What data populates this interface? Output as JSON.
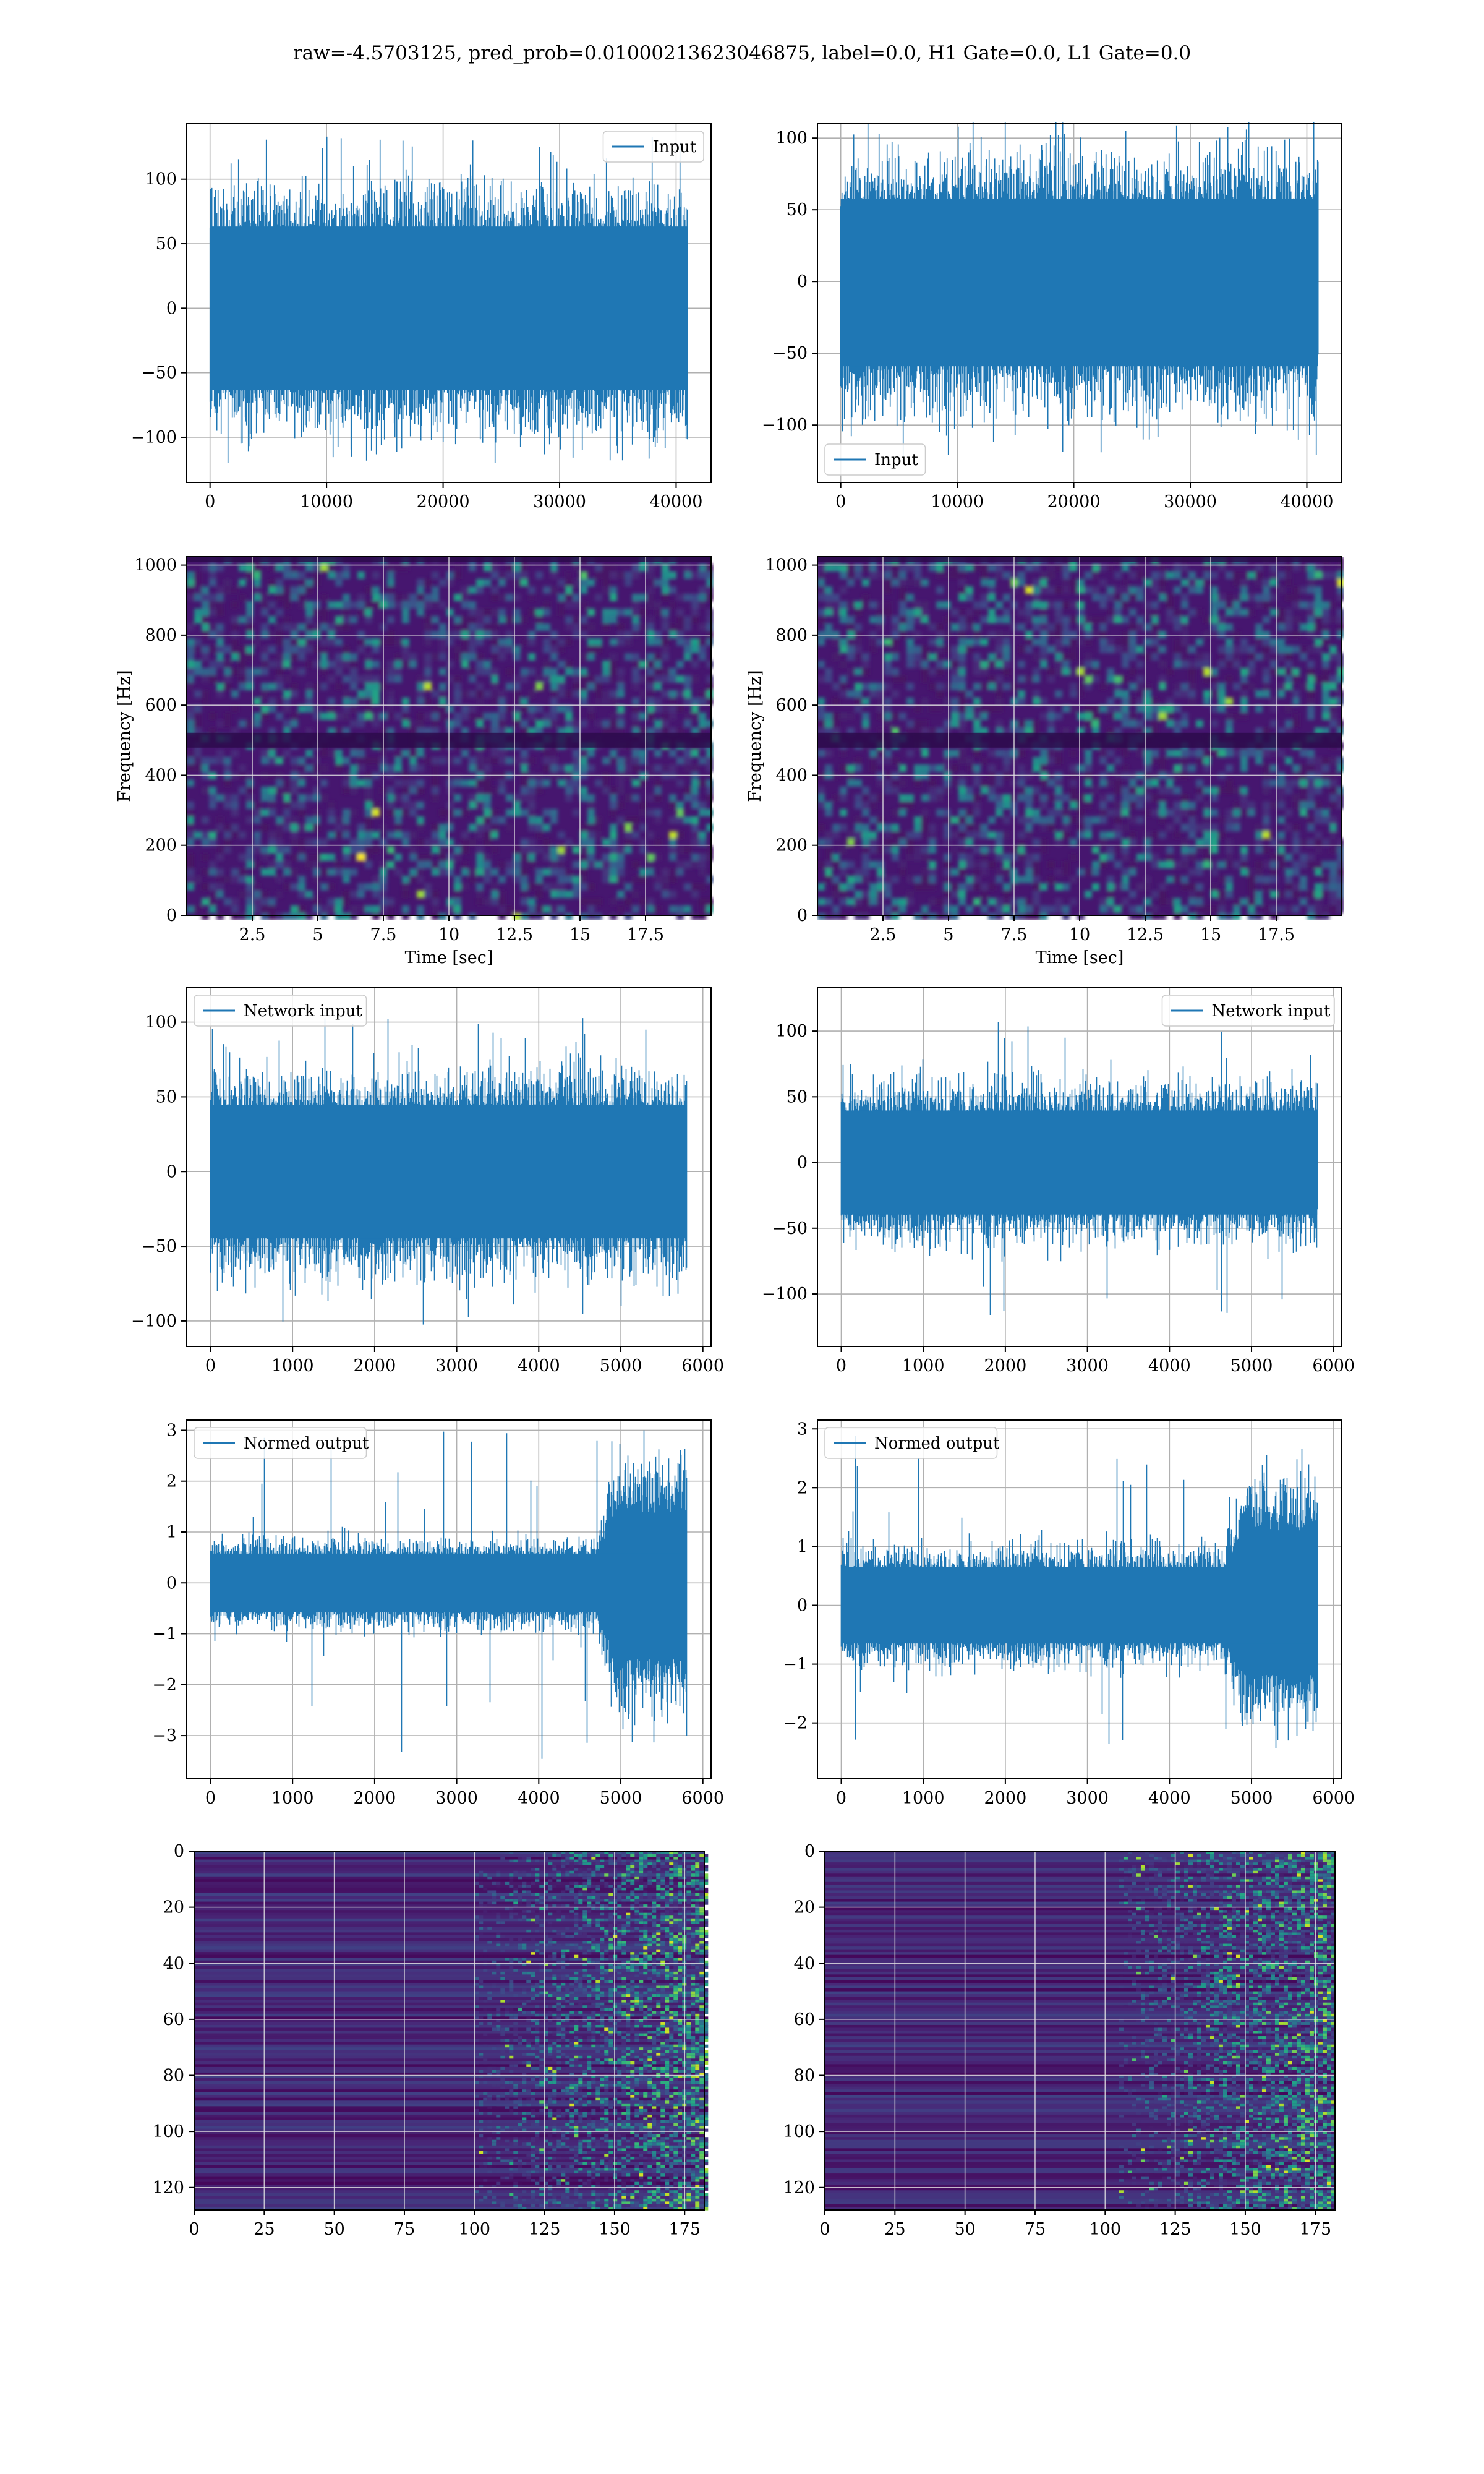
{
  "figure": {
    "suptitle": "raw=-4.5703125, pred_prob=0.01000213623046875, label=0.0, H1 Gate=0.0, L1 Gate=0.0"
  },
  "colors": {
    "line": "#1f77b4",
    "grid": "#b0b0b0",
    "spec_bg": "#3b1a6e",
    "viridis": [
      "#440154",
      "#482878",
      "#3e4989",
      "#31688e",
      "#26828e",
      "#1f9e89",
      "#35b779",
      "#6ece58",
      "#b5de2b",
      "#fde725"
    ]
  },
  "chart_data": [
    {
      "id": "h1-input",
      "type": "line",
      "legend": "Input",
      "legend_loc": "upper right",
      "xticks": [
        0,
        10000,
        20000,
        30000,
        40000
      ],
      "yticks": [
        -100,
        -50,
        0,
        50,
        100
      ],
      "xlim": [
        -2000,
        43000
      ],
      "ylim": [
        -135,
        143
      ],
      "n": 40960,
      "envelope": [
        -88,
        88
      ],
      "peaks": [
        -120,
        133
      ]
    },
    {
      "id": "l1-input",
      "type": "line",
      "legend": "Input",
      "legend_loc": "lower left",
      "xticks": [
        0,
        10000,
        20000,
        30000,
        40000
      ],
      "yticks": [
        -100,
        -50,
        0,
        50,
        100
      ],
      "xlim": [
        -2000,
        43000
      ],
      "ylim": [
        -140,
        110
      ],
      "n": 40960,
      "envelope": [
        -82,
        80
      ],
      "peaks": [
        -127,
        111
      ]
    },
    {
      "id": "h1-spectrogram",
      "type": "heatmap",
      "xlabel": "Time [sec]",
      "ylabel": "Frequency [Hz]",
      "xticks": [
        2.5,
        5.0,
        7.5,
        10.0,
        12.5,
        15.0,
        17.5
      ],
      "yticks": [
        0,
        200,
        400,
        600,
        800,
        1000
      ],
      "xlim": [
        0,
        20
      ],
      "ylim": [
        0,
        1024
      ]
    },
    {
      "id": "l1-spectrogram",
      "type": "heatmap",
      "xlabel": "Time [sec]",
      "ylabel": "Frequency [Hz]",
      "xticks": [
        2.5,
        5.0,
        7.5,
        10.0,
        12.5,
        15.0,
        17.5
      ],
      "yticks": [
        0,
        200,
        400,
        600,
        800,
        1000
      ],
      "xlim": [
        0,
        20
      ],
      "ylim": [
        0,
        1024
      ]
    },
    {
      "id": "h1-network-input",
      "type": "line",
      "legend": "Network input",
      "legend_loc": "upper left",
      "xticks": [
        0,
        1000,
        2000,
        3000,
        4000,
        5000,
        6000
      ],
      "yticks": [
        -100,
        -50,
        0,
        50,
        100
      ],
      "xlim": [
        -290,
        6100
      ],
      "ylim": [
        -117,
        123
      ],
      "n": 5800,
      "envelope": [
        -62,
        62
      ],
      "peaks": [
        -103,
        103
      ]
    },
    {
      "id": "l1-network-input",
      "type": "line",
      "legend": "Network input",
      "legend_loc": "upper right",
      "xticks": [
        0,
        1000,
        2000,
        3000,
        4000,
        5000,
        6000
      ],
      "yticks": [
        -100,
        -50,
        0,
        50,
        100
      ],
      "xlim": [
        -290,
        6100
      ],
      "ylim": [
        -140,
        133
      ],
      "n": 5800,
      "envelope": [
        -55,
        55
      ],
      "peaks": [
        -126,
        120
      ]
    },
    {
      "id": "h1-normed-output",
      "type": "line",
      "legend": "Normed output",
      "legend_loc": "upper left",
      "xticks": [
        0,
        1000,
        2000,
        3000,
        4000,
        5000,
        6000
      ],
      "yticks": [
        -3,
        -2,
        -1,
        0,
        1,
        2,
        3
      ],
      "xlim": [
        -290,
        6100
      ],
      "ylim": [
        -3.85,
        3.2
      ],
      "n": 5800,
      "envelope": [
        -0.8,
        0.8
      ],
      "peaks": [
        -3.5,
        3.0
      ],
      "burst_start": 4700,
      "burst_envelope": [
        -2.4,
        2.2
      ]
    },
    {
      "id": "l1-normed-output",
      "type": "line",
      "legend": "Normed output",
      "legend_loc": "upper left",
      "xticks": [
        0,
        1000,
        2000,
        3000,
        4000,
        5000,
        6000
      ],
      "yticks": [
        -2,
        -1,
        0,
        1,
        2,
        3
      ],
      "xlim": [
        -290,
        6100
      ],
      "ylim": [
        -2.95,
        3.15
      ],
      "n": 5800,
      "envelope": [
        -0.9,
        0.9
      ],
      "peaks": [
        -2.6,
        2.9
      ],
      "burst_start": 4650,
      "burst_envelope": [
        -1.9,
        2.0
      ]
    },
    {
      "id": "h1-feature-map",
      "type": "heatmap",
      "xticks": [
        0,
        25,
        50,
        75,
        100,
        125,
        150,
        175
      ],
      "yticks": [
        0,
        20,
        40,
        60,
        80,
        100,
        120
      ],
      "xlim": [
        0,
        182
      ],
      "ylim": [
        128,
        0
      ],
      "active_from": 115
    },
    {
      "id": "l1-feature-map",
      "type": "heatmap",
      "xticks": [
        0,
        25,
        50,
        75,
        100,
        125,
        150,
        175
      ],
      "yticks": [
        0,
        20,
        40,
        60,
        80,
        100,
        120
      ],
      "xlim": [
        0,
        182
      ],
      "ylim": [
        128,
        0
      ],
      "active_from": 120
    }
  ]
}
